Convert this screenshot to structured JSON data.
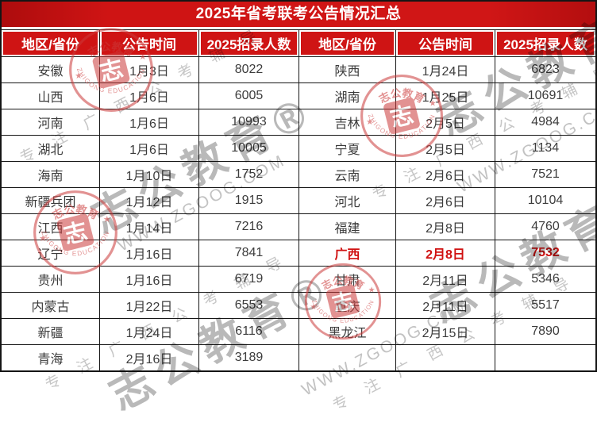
{
  "title": "2025年省考联考公告情况汇总",
  "columns": [
    "地区/省份",
    "公告时间",
    "2025招录人数",
    "地区/省份",
    "公告时间",
    "2025招录人数"
  ],
  "rows": [
    {
      "cells": [
        "安徽",
        "1月3日",
        "8022",
        "陕西",
        "1月24日",
        "6823"
      ]
    },
    {
      "cells": [
        "山西",
        "1月6日",
        "6005",
        "湖南",
        "1月25日",
        "10691"
      ]
    },
    {
      "cells": [
        "河南",
        "1月6日",
        "10993",
        "吉林",
        "2月5日",
        "4984"
      ]
    },
    {
      "cells": [
        "湖北",
        "1月6日",
        "10005",
        "宁夏",
        "2月5日",
        "1134"
      ]
    },
    {
      "cells": [
        "海南",
        "1月10日",
        "1752",
        "云南",
        "2月6日",
        "7521"
      ]
    },
    {
      "cells": [
        "新疆兵团",
        "1月12日",
        "1915",
        "河北",
        "2月6日",
        "10104"
      ]
    },
    {
      "cells": [
        "江西",
        "1月14日",
        "7216",
        "福建",
        "2月8日",
        "4760"
      ]
    },
    {
      "cells": [
        "辽宁",
        "1月16日",
        "7841",
        "广西",
        "2月8日",
        "7532"
      ]
    },
    {
      "cells": [
        "贵州",
        "1月16日",
        "6719",
        "甘肃",
        "2月11日",
        "5346"
      ]
    },
    {
      "cells": [
        "内蒙古",
        "1月22日",
        "6553",
        "重庆",
        "2月11日",
        "5517"
      ]
    },
    {
      "cells": [
        "新疆",
        "1月24日",
        "6116",
        "黑龙江",
        "2月15日",
        "7890"
      ]
    },
    {
      "cells": [
        "青海",
        "2月16日",
        "3189",
        "",
        "",
        ""
      ]
    }
  ],
  "highlight": {
    "row": 7,
    "cols": [
      3,
      4,
      5
    ]
  },
  "colors": {
    "header_red": "#cf1414",
    "highlight_red": "#d01111",
    "border_black": "#161616",
    "text_gray": "#3c3c3c"
  },
  "watermark": {
    "brand": "志公教育",
    "brand_reg": "志公教育®",
    "url": "WWW.ZGOOG.COM",
    "tagline": "专注广西公考辅导",
    "stamp_top_arc": "志公教育",
    "stamp_bottom_arc": "ZHIGONG EDUCATION",
    "stamp_center_glyph": "志",
    "stamp_star": "★"
  }
}
